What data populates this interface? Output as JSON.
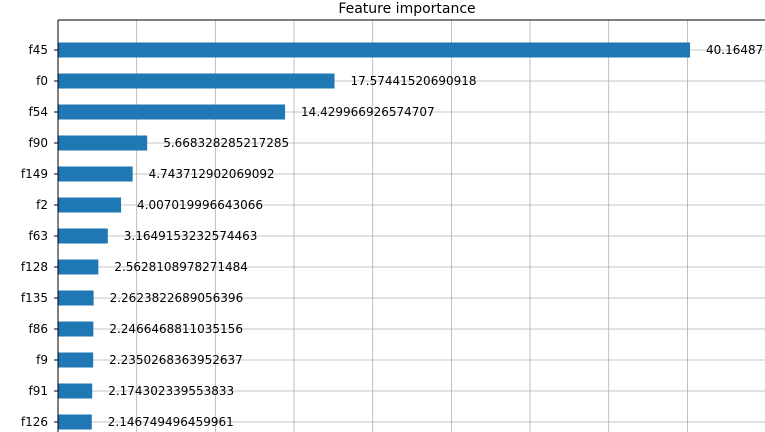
{
  "chart_data": {
    "type": "bar",
    "orientation": "horizontal",
    "title": "Feature importance",
    "xlabel": "",
    "ylabel": "",
    "grid": true,
    "bar_color": "#1f77b4",
    "categories": [
      "f45",
      "f0",
      "f54",
      "f90",
      "f149",
      "f2",
      "f63",
      "f128",
      "f135",
      "f86",
      "f9",
      "f91",
      "f126"
    ],
    "values": [
      40.16487,
      17.57441520690918,
      14.429966926574707,
      5.668328285217285,
      4.743712902069092,
      4.007019996643066,
      3.1649153232574463,
      2.5628108978271484,
      2.2623822689056396,
      2.2466468811035156,
      2.2350268363952637,
      2.174302339553833,
      2.146749496459961
    ],
    "value_labels": [
      "40.16487",
      "17.57441520690918",
      "14.429966926574707",
      "5.668328285217285",
      "4.743712902069092",
      "4.007019996643066",
      "3.1649153232574463",
      "2.5628108978271484",
      "2.2623822689056396",
      "2.2466468811035156",
      "2.2350268363952637",
      "2.174302339553833",
      "2.146749496459961"
    ],
    "xlim": [
      0,
      44
    ]
  }
}
